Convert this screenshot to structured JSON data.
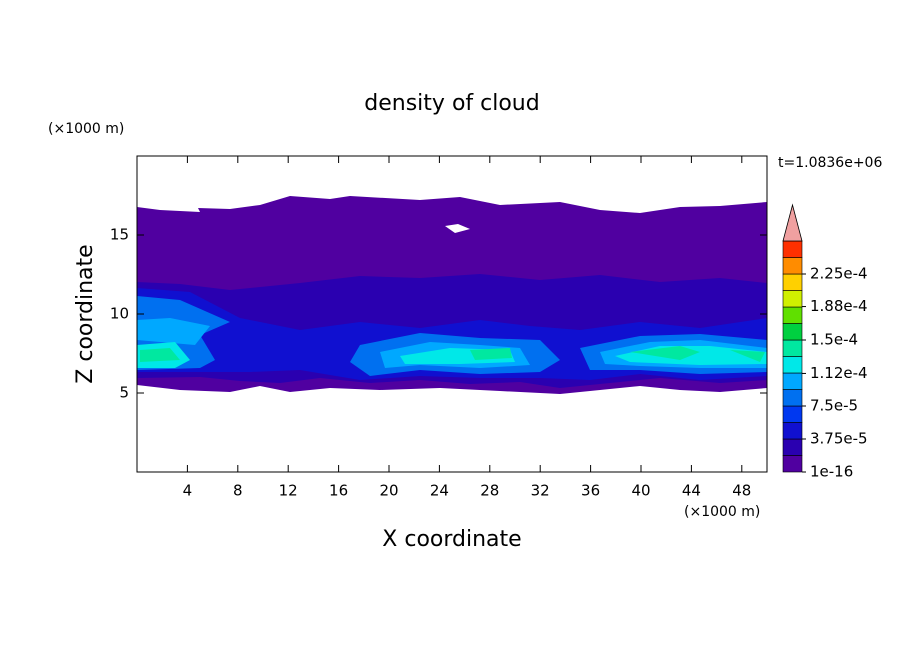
{
  "chart_data": {
    "type": "contour",
    "title": "density of cloud",
    "xlabel": "X coordinate",
    "ylabel": "Z coordinate",
    "x_unit": "(×1000 m)",
    "y_unit": "(×1000 m)",
    "annotation": "t=1.0836e+06",
    "xlim": [
      0,
      50
    ],
    "ylim": [
      0,
      20
    ],
    "xticks": [
      4,
      8,
      12,
      16,
      20,
      24,
      28,
      32,
      36,
      40,
      44,
      48
    ],
    "yticks": [
      5,
      10,
      15
    ],
    "levels": [
      1e-16,
      1.875e-05,
      3.75e-05,
      5.625e-05,
      7.5e-05,
      9.375e-05,
      0.0001125,
      0.00013125,
      0.00015,
      0.00016875,
      0.0001875,
      0.00020625,
      0.000225,
      0.00024375
    ],
    "colors": [
      "#5000a0",
      "#2a00b0",
      "#1010d0",
      "#0038f0",
      "#0070f0",
      "#00a8ff",
      "#00e8e8",
      "#00e8a0",
      "#00d040",
      "#60e000",
      "#d0f000",
      "#ffd000",
      "#ff8c00",
      "#ff3000"
    ],
    "over_color": "#f0a0a0",
    "clim": [
      1e-16,
      0.0002625
    ],
    "colorbar_ticks": [
      {
        "value": 1e-16,
        "label": "1e-16"
      },
      {
        "value": 3.75e-05,
        "label": "3.75e-5"
      },
      {
        "value": 7.5e-05,
        "label": "7.5e-5"
      },
      {
        "value": 0.000112,
        "label": "1.12e-4"
      },
      {
        "value": 0.00015,
        "label": "1.5e-4"
      },
      {
        "value": 0.000188,
        "label": "1.88e-4"
      },
      {
        "value": 0.000225,
        "label": "2.25e-4"
      }
    ]
  }
}
